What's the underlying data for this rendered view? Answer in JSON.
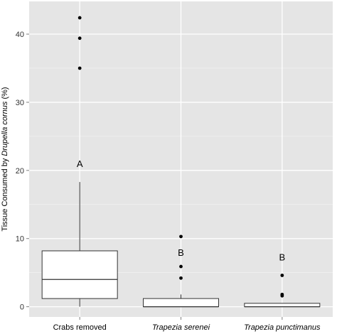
{
  "chart_data": {
    "type": "box",
    "ylabel_prefix": "Tissue Consumed by ",
    "ylabel_italic": "Drupella cornus",
    "ylabel_suffix": " (%)",
    "xlabel": "",
    "ylim": [
      -1.5,
      44.8
    ],
    "yticks": [
      0,
      10,
      20,
      30,
      40
    ],
    "grid": true,
    "panel_color": "#e5e5e5",
    "grid_color": "#ffffff",
    "groups": [
      {
        "label": "Crabs removed",
        "italic": false,
        "letter": "A",
        "letter_y": 21,
        "min": 0,
        "q1": 1.2,
        "median": 4.0,
        "q3": 8.2,
        "max": 18.3,
        "outliers": [
          35.0,
          39.4,
          42.4
        ]
      },
      {
        "label": "Trapezia serenei",
        "italic": true,
        "letter": "B",
        "letter_y": 8,
        "min": 0,
        "q1": 0,
        "median": 0,
        "q3": 1.2,
        "max": 1.8,
        "outliers": [
          4.2,
          5.9,
          10.3
        ]
      },
      {
        "label": "Trapezia punctimanus",
        "italic": true,
        "letter": "B",
        "letter_y": 7.3,
        "min": 0,
        "q1": 0,
        "median": 0,
        "q3": 0.5,
        "max": 0.5,
        "outliers": [
          1.6,
          1.8,
          4.6
        ]
      }
    ]
  }
}
